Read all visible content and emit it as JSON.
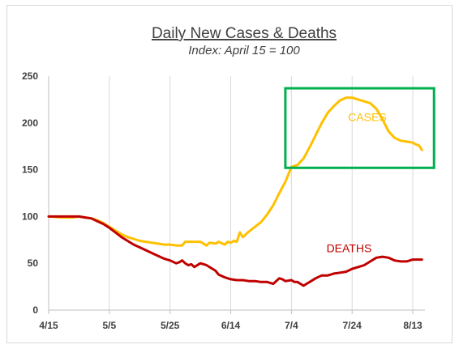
{
  "chart_data": {
    "type": "line",
    "title": "Daily New Cases & Deaths",
    "subtitle": "Index: April 15 = 100",
    "xlabel": "",
    "ylabel": "",
    "x_tick_labels": [
      "4/15",
      "5/5",
      "5/25",
      "6/14",
      "7/4",
      "7/24",
      "8/13"
    ],
    "x_tick_days": [
      0,
      20,
      40,
      60,
      80,
      100,
      120
    ],
    "xlim": [
      0,
      124
    ],
    "ylim": [
      0,
      250
    ],
    "y_ticks": [
      0,
      50,
      100,
      150,
      200,
      250
    ],
    "grid": "vertical",
    "series": [
      {
        "name": "CASES",
        "color": "#FFC000",
        "x": [
          0,
          4,
          8,
          10,
          12,
          14,
          16,
          18,
          20,
          22,
          24,
          26,
          28,
          30,
          32,
          34,
          36,
          38,
          40,
          42,
          44,
          45,
          47,
          50,
          52,
          53,
          55,
          56,
          58,
          59,
          60,
          61,
          62,
          63,
          64,
          66,
          68,
          70,
          72,
          74,
          76,
          78,
          80,
          82,
          84,
          86,
          88,
          90,
          92,
          94,
          96,
          98,
          100,
          102,
          104,
          106,
          108,
          110,
          112,
          114,
          116,
          118,
          120,
          121,
          122,
          123
        ],
        "y": [
          100,
          99,
          99,
          100,
          99,
          98,
          96,
          93,
          89,
          85,
          81,
          78,
          76,
          74,
          73,
          72,
          71,
          70,
          70,
          69,
          69,
          73,
          73,
          73,
          69,
          72,
          71,
          73,
          70,
          73,
          72,
          74,
          73,
          83,
          78,
          84,
          89,
          94,
          102,
          112,
          125,
          137,
          153,
          155,
          162,
          174,
          187,
          200,
          211,
          218,
          224,
          227,
          227,
          225,
          223,
          221,
          215,
          204,
          191,
          184,
          181,
          180,
          179,
          177,
          176,
          171
        ]
      },
      {
        "name": "DEATHS",
        "color": "#C00000",
        "x": [
          0,
          4,
          8,
          10,
          12,
          14,
          16,
          18,
          20,
          22,
          24,
          26,
          28,
          30,
          32,
          34,
          36,
          38,
          40,
          42,
          43,
          44,
          45,
          46,
          47,
          48,
          50,
          52,
          54,
          55,
          56,
          58,
          60,
          62,
          64,
          66,
          68,
          70,
          72,
          74,
          76,
          77,
          78,
          80,
          81,
          82,
          84,
          86,
          88,
          90,
          92,
          94,
          96,
          98,
          100,
          102,
          104,
          106,
          108,
          110,
          112,
          114,
          116,
          118,
          120,
          122,
          123
        ],
        "y": [
          100,
          100,
          100,
          100,
          99,
          98,
          95,
          92,
          88,
          83,
          78,
          74,
          70,
          67,
          64,
          61,
          58,
          55,
          53,
          50,
          51,
          53,
          50,
          48,
          49,
          46,
          50,
          48,
          44,
          42,
          38,
          35,
          33,
          32,
          32,
          31,
          31,
          30,
          30,
          28,
          34,
          33,
          31,
          32,
          30,
          30,
          26,
          30,
          34,
          37,
          37,
          39,
          40,
          41,
          44,
          46,
          48,
          52,
          56,
          57,
          56,
          53,
          52,
          52,
          54,
          54,
          54
        ]
      }
    ],
    "annotations": [
      {
        "text": "CASES",
        "color": "#FFC000",
        "x": 105,
        "y": 202
      },
      {
        "text": "DEATHS",
        "color": "#C00000",
        "x": 99,
        "y": 62
      }
    ],
    "highlight_box": {
      "color": "#00B050",
      "x0": 78,
      "x1": 127,
      "y0": 152,
      "y1": 237
    }
  }
}
